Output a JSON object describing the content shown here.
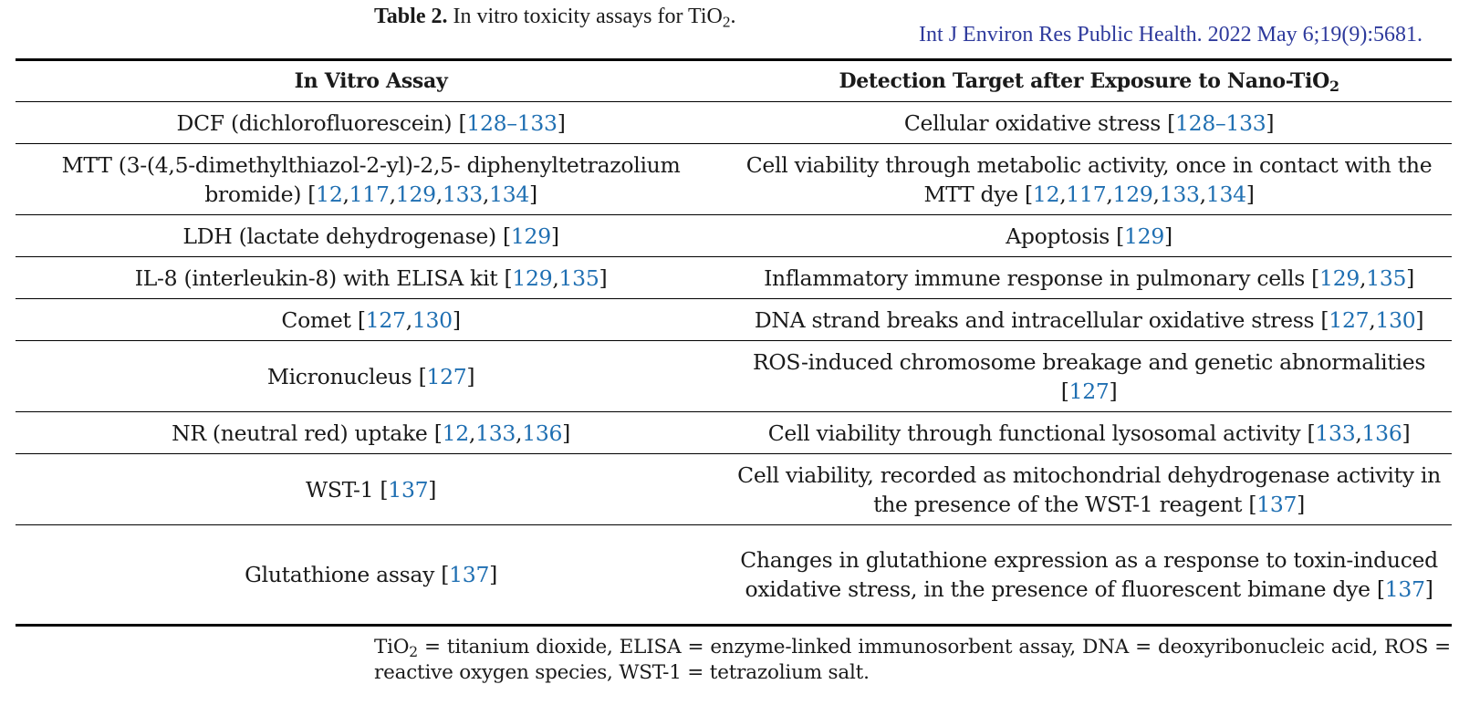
{
  "caption": {
    "label": "Table 2.",
    "text": "In vitro toxicity assays for TiO",
    "sub": "2",
    "end": "."
  },
  "citation": "Int J Environ Res Public Health. 2022 May 6;19(9):5681.",
  "header": {
    "col1": "In Vitro Assay",
    "col2": "Detection Target after Exposure to Nano-TiO",
    "col2_sub": "2"
  },
  "rows": [
    {
      "assay": "DCF (dichlorofluorescein) [",
      "assay_refs": [
        "128–133"
      ],
      "target": "Cellular oxidative stress [",
      "target_refs": [
        "128–133"
      ]
    },
    {
      "assay": "MTT (3-(4,5-dimethylthiazol-2-yl)-2,5- diphenyltetrazolium bromide) [",
      "assay_refs": [
        "12",
        "117",
        "129",
        "133",
        "134"
      ],
      "target": "Cell viability through metabolic activity, once in contact with the MTT dye [",
      "target_refs": [
        "12",
        "117",
        "129",
        "133",
        "134"
      ]
    },
    {
      "assay": "LDH (lactate dehydrogenase) [",
      "assay_refs": [
        "129"
      ],
      "target": "Apoptosis [",
      "target_refs": [
        "129"
      ]
    },
    {
      "assay": "IL-8 (interleukin-8) with ELISA kit [",
      "assay_refs": [
        "129",
        "135"
      ],
      "target": "Inflammatory immune response in pulmonary cells [",
      "target_refs": [
        "129",
        "135"
      ]
    },
    {
      "assay": "Comet [",
      "assay_refs": [
        "127",
        "130"
      ],
      "target": "DNA strand breaks and intracellular oxidative stress [",
      "target_refs": [
        "127",
        "130"
      ]
    },
    {
      "assay": "Micronucleus [",
      "assay_refs": [
        "127"
      ],
      "target": "ROS-induced chromosome breakage and genetic abnormalities [",
      "target_refs": [
        "127"
      ]
    },
    {
      "assay": "NR (neutral red) uptake [",
      "assay_refs": [
        "12",
        "133",
        "136"
      ],
      "target": "Cell viability through functional lysosomal activity [",
      "target_refs": [
        "133",
        "136"
      ]
    },
    {
      "assay": "WST-1 [",
      "assay_refs": [
        "137"
      ],
      "target": "Cell viability, recorded as mitochondrial dehydrogenase activity in the presence of the WST-1 reagent [",
      "target_refs": [
        "137"
      ]
    },
    {
      "assay": "Glutathione assay [",
      "assay_refs": [
        "137"
      ],
      "target": "Changes in glutathione expression as a response to toxin-induced oxidative stress, in the presence of fluorescent bimane dye [",
      "target_refs": [
        "137"
      ]
    }
  ],
  "footnote": {
    "pre": "TiO",
    "sub": "2",
    "text": " = titanium dioxide, ELISA = enzyme-linked immunosorbent assay, DNA = deoxyribonucleic acid, ROS = reactive oxygen species, WST-1 = tetrazolium salt."
  },
  "colors": {
    "ref_link": "#1f6fb2",
    "citation": "#2e3a9c"
  }
}
